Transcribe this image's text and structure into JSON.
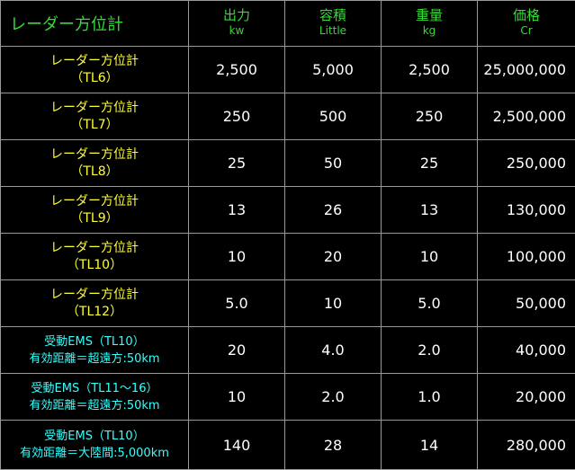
{
  "header": {
    "title": "レーダー方位計",
    "columns": [
      {
        "label": "出力",
        "unit": "kw"
      },
      {
        "label": "容積",
        "unit": "Little"
      },
      {
        "label": "重量",
        "unit": "kg"
      },
      {
        "label": "価格",
        "unit": "Cr"
      }
    ]
  },
  "rows": [
    {
      "name": "レーダー方位計",
      "model": "（TL6）",
      "output": "2,500",
      "volume": "5,000",
      "weight": "2,500",
      "price": "25,000,000"
    },
    {
      "name": "レーダー方位計",
      "model": "（TL7）",
      "output": "250",
      "volume": "500",
      "weight": "250",
      "price": "2,500,000"
    },
    {
      "name": "レーダー方位計",
      "model": "（TL8）",
      "output": "25",
      "volume": "50",
      "weight": "25",
      "price": "250,000"
    },
    {
      "name": "レーダー方位計",
      "model": "（TL9）",
      "output": "13",
      "volume": "26",
      "weight": "13",
      "price": "130,000"
    },
    {
      "name": "レーダー方位計",
      "model": "（TL10）",
      "output": "10",
      "volume": "20",
      "weight": "10",
      "price": "100,000"
    },
    {
      "name": "レーダー方位計",
      "model": "（TL12）",
      "output": "5.0",
      "volume": "10",
      "weight": "5.0",
      "price": "50,000"
    },
    {
      "name": "受動EMS（TL10）",
      "model": "有効距離＝超遠方:50km",
      "output": "20",
      "volume": "4.0",
      "weight": "2.0",
      "price": "40,000"
    },
    {
      "name": "受動EMS（TL11〜16）",
      "model": "有効距離＝超遠方:50km",
      "output": "10",
      "volume": "2.0",
      "weight": "1.0",
      "price": "20,000"
    },
    {
      "name": "受動EMS（TL10）",
      "model": "有効距離＝大陸間:5,000km",
      "output": "140",
      "volume": "28",
      "weight": "14",
      "price": "280,000"
    }
  ],
  "colors": {
    "background": "#000000",
    "header_text": "#33dd33",
    "radar_name": "#ffff33",
    "ems_name": "#33ffff",
    "value_text": "#ffffff",
    "grid": "#9a9a9a"
  }
}
